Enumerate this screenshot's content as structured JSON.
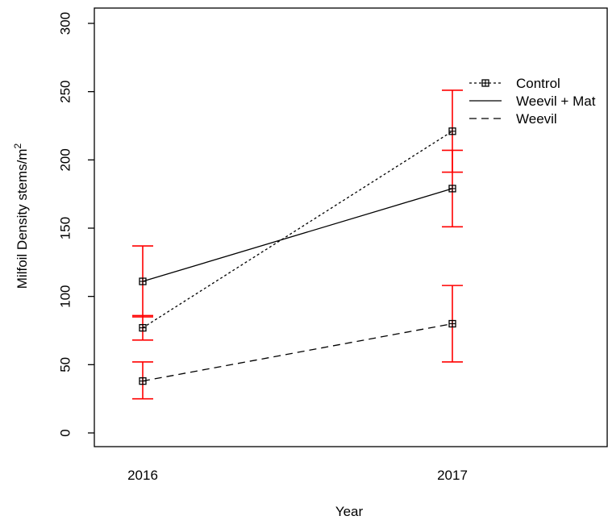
{
  "chart_data": {
    "type": "line",
    "title": "",
    "xlabel": "Year",
    "ylabel_main": "Milfoil Density stems/m",
    "ylabel_sup": "2",
    "categories": [
      "2016",
      "2017"
    ],
    "ylim": [
      0,
      300
    ],
    "yticks": [
      0,
      50,
      100,
      150,
      200,
      250,
      300
    ],
    "grid": false,
    "legend_position": "top-right",
    "error_bar_color": "#ff0000",
    "series": [
      {
        "name": "Control",
        "linestyle": "dotted",
        "values": [
          77,
          221
        ],
        "err_low": [
          68,
          191
        ],
        "err_high": [
          86,
          251
        ],
        "marker": true
      },
      {
        "name": "Weevil + Mat",
        "linestyle": "solid",
        "values": [
          111,
          179
        ],
        "err_low": [
          85,
          151
        ],
        "err_high": [
          137,
          207
        ],
        "marker": true
      },
      {
        "name": "Weevil",
        "linestyle": "dashed",
        "values": [
          38,
          80
        ],
        "err_low": [
          25,
          52
        ],
        "err_high": [
          52,
          108
        ],
        "marker": true
      }
    ]
  }
}
